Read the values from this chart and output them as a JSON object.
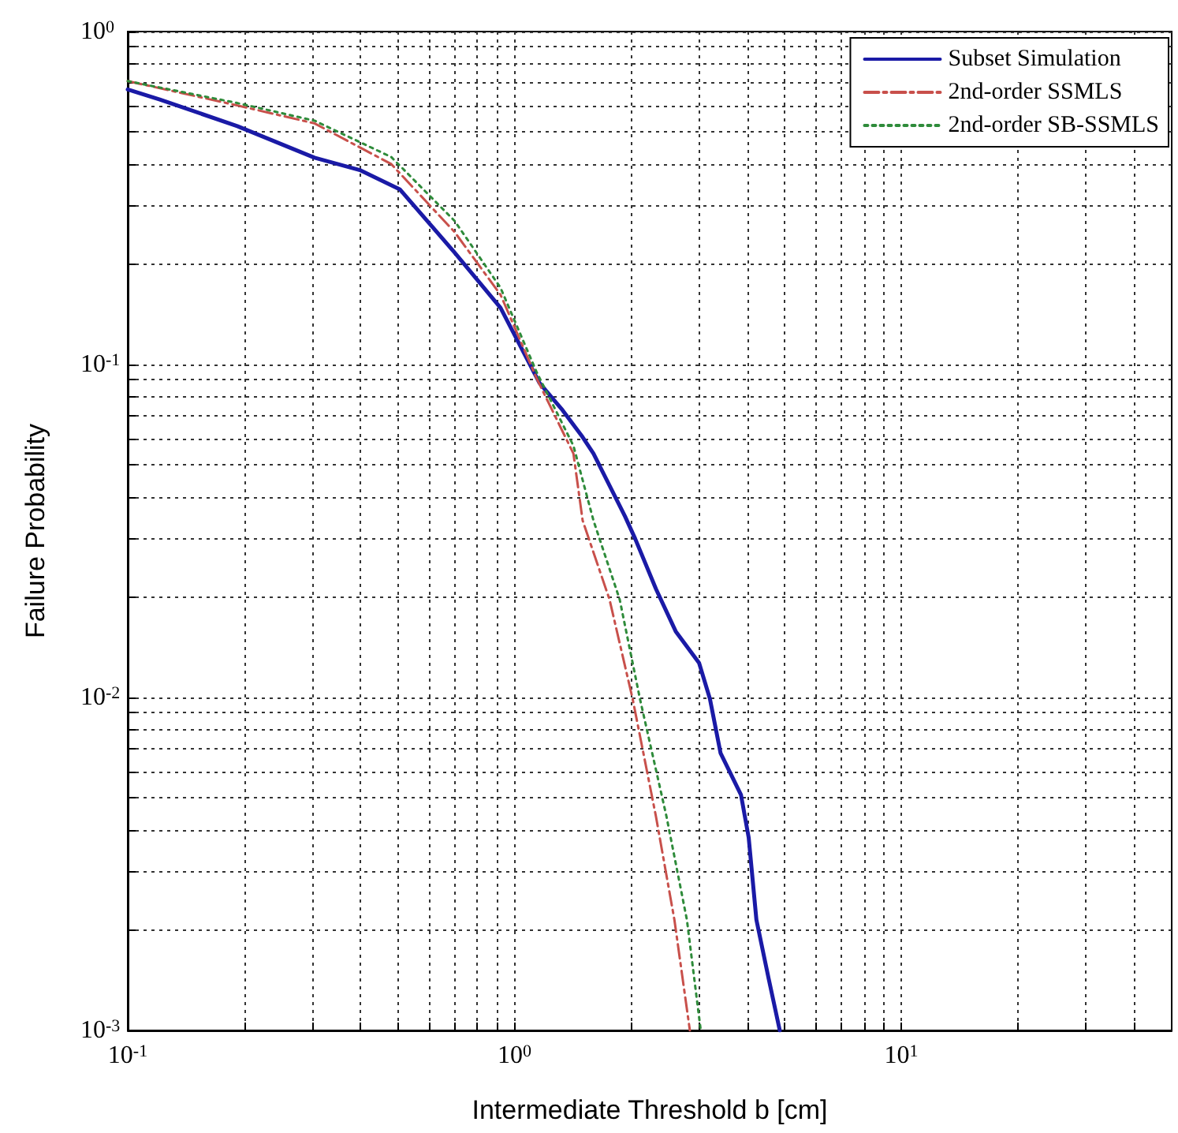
{
  "chart_data": {
    "type": "line",
    "xlabel": "Intermediate Threshold b [cm]",
    "ylabel": "Failure Probability",
    "log": "xy",
    "grid": true,
    "legend": "top right",
    "marker": "none",
    "xlim": [
      0.1,
      50
    ],
    "ylim": [
      0.001,
      1
    ],
    "xticks": [
      {
        "value": 0.1,
        "label": "10$^{-1}$"
      },
      {
        "value": 0.2,
        "label": null
      },
      {
        "value": 0.3,
        "label": null
      },
      {
        "value": 0.4,
        "label": null
      },
      {
        "value": 0.5,
        "label": null
      },
      {
        "value": 0.6,
        "label": null
      },
      {
        "value": 0.7,
        "label": null
      },
      {
        "value": 0.8,
        "label": null
      },
      {
        "value": 0.9,
        "label": null
      },
      {
        "value": 1,
        "label": "10$^{0}$"
      },
      {
        "value": 2,
        "label": null
      },
      {
        "value": 3,
        "label": null
      },
      {
        "value": 4,
        "label": null
      },
      {
        "value": 5,
        "label": null
      },
      {
        "value": 6,
        "label": null
      },
      {
        "value": 7,
        "label": null
      },
      {
        "value": 8,
        "label": null
      },
      {
        "value": 9,
        "label": null
      },
      {
        "value": 10,
        "label": "10$^{1}$"
      },
      {
        "value": 20,
        "label": null
      },
      {
        "value": 30,
        "label": null
      },
      {
        "value": 40,
        "label": null
      }
    ],
    "yticks": [
      {
        "value": 0.001,
        "label": "10$^{-3}$"
      },
      {
        "value": 0.002,
        "label": null
      },
      {
        "value": 0.003,
        "label": null
      },
      {
        "value": 0.004,
        "label": null
      },
      {
        "value": 0.005,
        "label": null
      },
      {
        "value": 0.006,
        "label": null
      },
      {
        "value": 0.007,
        "label": null
      },
      {
        "value": 0.008,
        "label": null
      },
      {
        "value": 0.009,
        "label": null
      },
      {
        "value": 0.01,
        "label": "10$^{-2}$"
      },
      {
        "value": 0.02,
        "label": null
      },
      {
        "value": 0.03,
        "label": null
      },
      {
        "value": 0.04,
        "label": null
      },
      {
        "value": 0.05,
        "label": null
      },
      {
        "value": 0.06,
        "label": null
      },
      {
        "value": 0.07,
        "label": null
      },
      {
        "value": 0.08,
        "label": null
      },
      {
        "value": 0.09,
        "label": null
      },
      {
        "value": 0.1,
        "label": "10$^{-1}$"
      },
      {
        "value": 0.2,
        "label": null
      },
      {
        "value": 0.3,
        "label": null
      },
      {
        "value": 0.4,
        "label": null
      },
      {
        "value": 0.5,
        "label": null
      },
      {
        "value": 0.6,
        "label": null
      },
      {
        "value": 0.7,
        "label": null
      },
      {
        "value": 0.8,
        "label": null
      },
      {
        "value": 0.9,
        "label": null
      },
      {
        "value": 1,
        "label": "10$^{0}$"
      }
    ],
    "series": [
      {
        "name": "Subset Simulation",
        "color": "#1a1aa6",
        "line_style": "solid",
        "x": [
          0.1,
          0.121,
          0.192,
          0.304,
          0.4,
          0.505,
          0.7,
          0.92,
          1.16,
          1.33,
          1.5,
          1.6,
          1.93,
          2.05,
          2.32,
          2.61,
          3.0,
          3.2,
          3.41,
          3.85,
          4.03,
          4.22,
          4.54,
          4.85
        ],
        "values": [
          0.67,
          0.625,
          0.52,
          0.418,
          0.383,
          0.336,
          0.217,
          0.148,
          0.088,
          0.073,
          0.0605,
          0.054,
          0.035,
          0.03,
          0.0212,
          0.0158,
          0.0127,
          0.0099,
          0.0068,
          0.0051,
          0.0038,
          0.00215,
          0.00143,
          0.001
        ]
      },
      {
        "name": "2nd-order SSMLS",
        "color": "#c8504b",
        "line_style": "dashed",
        "x": [
          0.1,
          0.192,
          0.304,
          0.48,
          0.7,
          0.92,
          1.14,
          1.42,
          1.5,
          1.76,
          2.02,
          2.32,
          2.59,
          2.84
        ],
        "values": [
          0.71,
          0.6,
          0.53,
          0.4,
          0.25,
          0.162,
          0.091,
          0.054,
          0.034,
          0.0197,
          0.0099,
          0.0044,
          0.00215,
          0.001
        ]
      },
      {
        "name": "2nd-order SB-SSMLS",
        "color": "#2e8b3a",
        "line_style": "dotted",
        "x": [
          0.1,
          0.192,
          0.304,
          0.48,
          0.7,
          0.92,
          1.14,
          1.42,
          1.6,
          1.87,
          2.11,
          2.47,
          2.79,
          3.03
        ],
        "values": [
          0.71,
          0.61,
          0.54,
          0.42,
          0.27,
          0.17,
          0.095,
          0.057,
          0.034,
          0.0197,
          0.0099,
          0.0044,
          0.00215,
          0.001
        ]
      }
    ]
  }
}
